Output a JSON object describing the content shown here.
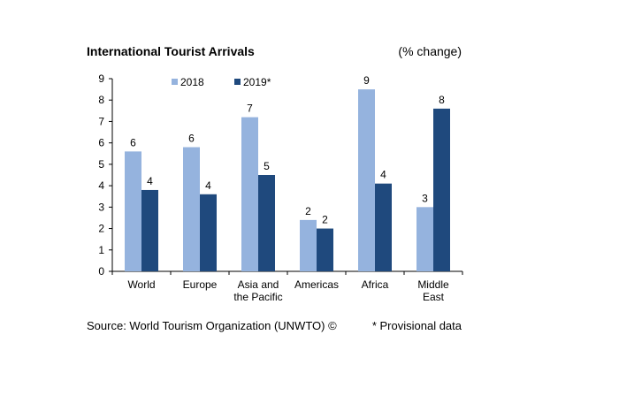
{
  "chart_data": {
    "type": "bar",
    "title": "International Tourist Arrivals",
    "unit_label": "(% change)",
    "xlabel": "",
    "ylabel": "",
    "ylim": [
      0,
      9
    ],
    "yticks": [
      "0",
      "1",
      "2",
      "3",
      "4",
      "5",
      "6",
      "7",
      "8",
      "9"
    ],
    "grid": false,
    "legend_position": "top",
    "categories": [
      [
        "World"
      ],
      [
        "Europe"
      ],
      [
        "Asia and",
        "the Pacific"
      ],
      [
        "Americas"
      ],
      [
        "Africa"
      ],
      [
        "Middle",
        "East"
      ]
    ],
    "series": [
      {
        "name": "2018",
        "color": "#95b3de",
        "values": [
          5.6,
          5.8,
          7.2,
          2.4,
          8.5,
          3.0
        ],
        "labels": [
          "6",
          "6",
          "7",
          "2",
          "9",
          "3"
        ]
      },
      {
        "name": "2019*",
        "color": "#1f497d",
        "values": [
          3.8,
          3.6,
          4.5,
          2.0,
          4.1,
          7.6
        ],
        "labels": [
          "4",
          "4",
          "5",
          "2",
          "4",
          "8"
        ]
      }
    ]
  },
  "footer": {
    "source": "Source: World Tourism Organization (UNWTO) ©",
    "note": "* Provisional data"
  }
}
